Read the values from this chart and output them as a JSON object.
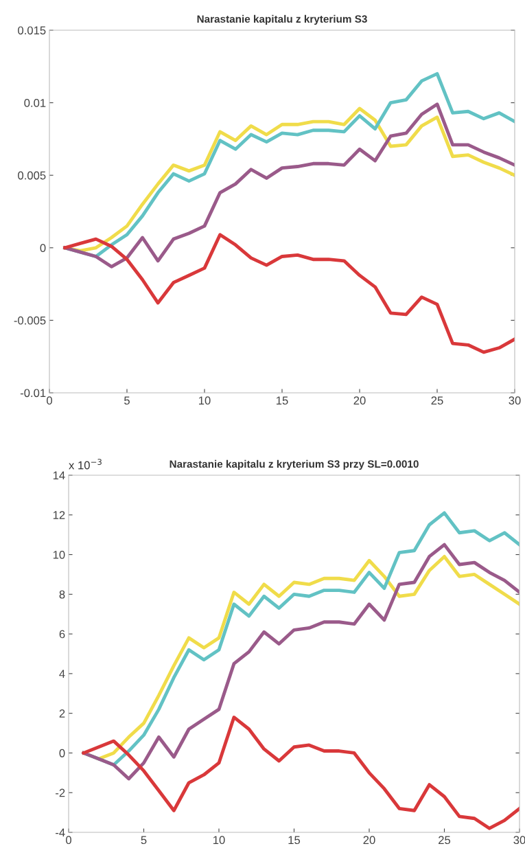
{
  "chart_data": [
    {
      "type": "line",
      "title": "Narastanie kapitalu z kryterium S3",
      "x": [
        1,
        2,
        3,
        4,
        5,
        6,
        7,
        8,
        9,
        10,
        11,
        12,
        13,
        14,
        15,
        16,
        17,
        18,
        19,
        20,
        21,
        22,
        23,
        24,
        25,
        26,
        27,
        28,
        29,
        30
      ],
      "xlim": [
        0,
        30
      ],
      "xticks": [
        0,
        5,
        10,
        15,
        20,
        25,
        30
      ],
      "ylim": [
        -0.01,
        0.015
      ],
      "yticks": [
        -0.01,
        -0.005,
        0,
        0.005,
        0.01,
        0.015
      ],
      "grid": false,
      "marker": "none",
      "line_style": "solid",
      "series": [
        {
          "color": "#f0dc4a",
          "values": [
            0,
            -0.0002,
            0,
            0.0007,
            0.0015,
            0.003,
            0.0044,
            0.0057,
            0.0053,
            0.0057,
            0.008,
            0.0074,
            0.0084,
            0.0078,
            0.0085,
            0.0085,
            0.0087,
            0.0087,
            0.0085,
            0.0096,
            0.0088,
            0.007,
            0.0071,
            0.0084,
            0.009,
            0.0063,
            0.0064,
            0.0059,
            0.0055,
            0.005
          ]
        },
        {
          "color": "#62c2c4",
          "values": [
            0,
            -0.0003,
            -0.0006,
            0.0002,
            0.0009,
            0.0022,
            0.0038,
            0.0051,
            0.0046,
            0.0051,
            0.0074,
            0.0068,
            0.0078,
            0.0073,
            0.0079,
            0.0078,
            0.0081,
            0.0081,
            0.008,
            0.0091,
            0.0082,
            0.01,
            0.0102,
            0.0115,
            0.012,
            0.0093,
            0.0094,
            0.0089,
            0.0093,
            0.0087
          ]
        },
        {
          "color": "#9a5a8a",
          "values": [
            0,
            -0.0003,
            -0.0006,
            -0.0013,
            -0.0007,
            0.0007,
            -0.0009,
            0.0006,
            0.001,
            0.0015,
            0.0038,
            0.0044,
            0.0054,
            0.0048,
            0.0055,
            0.0056,
            0.0058,
            0.0058,
            0.0057,
            0.0068,
            0.006,
            0.0077,
            0.0079,
            0.0092,
            0.0099,
            0.0071,
            0.0071,
            0.0066,
            0.0062,
            0.0057
          ]
        },
        {
          "color": "#d9383a",
          "values": [
            0,
            0.0003,
            0.0006,
            0.0001,
            -0.0008,
            -0.0022,
            -0.0038,
            -0.0024,
            -0.0019,
            -0.0014,
            0.0009,
            0.0002,
            -0.0007,
            -0.0012,
            -0.0006,
            -0.0005,
            -0.0008,
            -0.0008,
            -0.0009,
            -0.0019,
            -0.0027,
            -0.0045,
            -0.0046,
            -0.0034,
            -0.0039,
            -0.0066,
            -0.0067,
            -0.0072,
            -0.0069,
            -0.0063
          ]
        }
      ]
    },
    {
      "type": "line",
      "title": "Narastanie kapitalu z kryterium S3 przy SL=0.0010",
      "annotations": [
        "x 10$^{−3}$"
      ],
      "x": [
        1,
        2,
        3,
        4,
        5,
        6,
        7,
        8,
        9,
        10,
        11,
        12,
        13,
        14,
        15,
        16,
        17,
        18,
        19,
        20,
        21,
        22,
        23,
        24,
        25,
        26,
        27,
        28,
        29,
        30
      ],
      "xlim": [
        0,
        30
      ],
      "xticks": [
        0,
        5,
        10,
        15,
        20,
        25,
        30
      ],
      "ylim": [
        -4,
        14
      ],
      "yticks": [
        -4,
        -2,
        0,
        2,
        4,
        6,
        8,
        10,
        12,
        14
      ],
      "grid": false,
      "marker": "none",
      "line_style": "solid",
      "series": [
        {
          "color": "#f0dc4a",
          "values": [
            0,
            -0.3,
            0,
            0.8,
            1.5,
            2.9,
            4.4,
            5.8,
            5.3,
            5.8,
            8.1,
            7.5,
            8.5,
            7.9,
            8.6,
            8.5,
            8.8,
            8.8,
            8.7,
            9.7,
            8.9,
            7.9,
            8.0,
            9.2,
            9.9,
            8.9,
            9.0,
            8.5,
            8.0,
            7.5
          ]
        },
        {
          "color": "#62c2c4",
          "values": [
            0,
            -0.3,
            -0.6,
            0.1,
            0.9,
            2.2,
            3.8,
            5.2,
            4.7,
            5.2,
            7.5,
            6.9,
            7.9,
            7.3,
            8.0,
            7.9,
            8.2,
            8.2,
            8.1,
            9.1,
            8.3,
            10.1,
            10.2,
            11.5,
            12.1,
            11.1,
            11.2,
            10.7,
            11.1,
            10.5
          ]
        },
        {
          "color": "#9a5a8a",
          "values": [
            0,
            -0.3,
            -0.6,
            -1.3,
            -0.5,
            0.8,
            -0.2,
            1.2,
            1.7,
            2.2,
            4.5,
            5.1,
            6.1,
            5.5,
            6.2,
            6.3,
            6.6,
            6.6,
            6.5,
            7.5,
            6.7,
            8.5,
            8.6,
            9.9,
            10.5,
            9.5,
            9.6,
            9.1,
            8.7,
            8.1
          ]
        },
        {
          "color": "#d9383a",
          "values": [
            0,
            0.3,
            0.6,
            -0.1,
            -0.9,
            -1.9,
            -2.9,
            -1.5,
            -1.1,
            -0.5,
            1.8,
            1.2,
            0.2,
            -0.4,
            0.3,
            0.4,
            0.1,
            0.1,
            0,
            -1,
            -1.8,
            -2.8,
            -2.9,
            -1.6,
            -2.2,
            -3.2,
            -3.3,
            -3.8,
            -3.4,
            -2.8
          ]
        }
      ]
    }
  ]
}
